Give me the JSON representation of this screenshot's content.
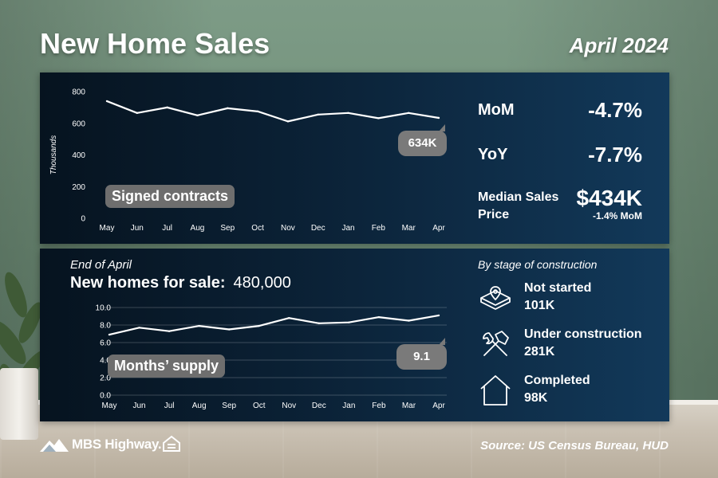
{
  "title": "New Home Sales",
  "date": "April 2024",
  "signed_contracts": {
    "label": "Signed contracts",
    "callout": "634K",
    "ylabel": "Thousands"
  },
  "stats": {
    "mom_label": "MoM",
    "mom_value": "-4.7%",
    "yoy_label": "YoY",
    "yoy_value": "-7.7%",
    "median_label": "Median Sales Price",
    "median_value": "$434K",
    "median_change": "-1.4% MoM"
  },
  "inventory": {
    "period_label": "End of April",
    "for_sale_label": "New homes for sale:",
    "for_sale_value": "480,000",
    "supply_label": "Months’ supply",
    "callout": "9.1"
  },
  "stages": {
    "title": "By stage of construction",
    "items": [
      {
        "name": "Not started",
        "count": "101K",
        "icon": "lot-location-icon"
      },
      {
        "name": "Under construction",
        "count": "281K",
        "icon": "hammer-wrench-icon"
      },
      {
        "name": "Completed",
        "count": "98K",
        "icon": "house-icon"
      }
    ]
  },
  "footer": {
    "brand": "MBS Highway.",
    "source": "Source: US Census Bureau, HUD"
  },
  "colors": {
    "panel_dark": "#06131f",
    "panel_light": "#12395a",
    "pill": "#6e6e6e",
    "line": "#ffffff"
  },
  "chart_data": [
    {
      "type": "line",
      "categories": [
        "May",
        "Jun",
        "Jul",
        "Aug",
        "Sep",
        "Oct",
        "Nov",
        "Dec",
        "Jan",
        "Feb",
        "Mar",
        "Apr"
      ],
      "values": [
        740,
        665,
        700,
        650,
        695,
        675,
        612,
        655,
        665,
        632,
        665,
        634
      ],
      "ylim": [
        0,
        800
      ],
      "yticks": [
        "0",
        "200",
        "400",
        "600",
        "800"
      ],
      "ylabel": "Thousands",
      "grid": false
    },
    {
      "type": "line",
      "categories": [
        "May",
        "Jun",
        "Jul",
        "Aug",
        "Sep",
        "Oct",
        "Nov",
        "Dec",
        "Jan",
        "Feb",
        "Mar",
        "Apr"
      ],
      "values": [
        6.9,
        7.7,
        7.3,
        7.9,
        7.5,
        7.9,
        8.8,
        8.2,
        8.3,
        8.9,
        8.5,
        9.1
      ],
      "ylim": [
        0,
        10
      ],
      "yticks": [
        "0.0",
        "2.0",
        "4.0",
        "6.0",
        "8.0",
        "10.0"
      ],
      "grid": true
    }
  ]
}
